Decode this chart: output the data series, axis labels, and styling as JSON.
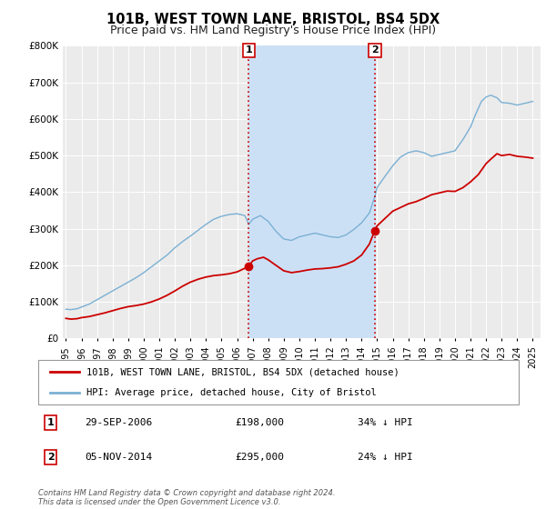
{
  "title": "101B, WEST TOWN LANE, BRISTOL, BS4 5DX",
  "subtitle": "Price paid vs. HM Land Registry's House Price Index (HPI)",
  "ylim": [
    0,
    800000
  ],
  "yticks": [
    0,
    100000,
    200000,
    300000,
    400000,
    500000,
    600000,
    700000,
    800000
  ],
  "ytick_labels": [
    "£0",
    "£100K",
    "£200K",
    "£300K",
    "£400K",
    "£500K",
    "£600K",
    "£700K",
    "£800K"
  ],
  "xlim_start": 1994.8,
  "xlim_end": 2025.5,
  "xticks": [
    1995,
    1996,
    1997,
    1998,
    1999,
    2000,
    2001,
    2002,
    2003,
    2004,
    2005,
    2006,
    2007,
    2008,
    2009,
    2010,
    2011,
    2012,
    2013,
    2014,
    2015,
    2016,
    2017,
    2018,
    2019,
    2020,
    2021,
    2022,
    2023,
    2024,
    2025
  ],
  "background_color": "#ffffff",
  "plot_bg_color": "#ebebeb",
  "shaded_color": "#cce0f5",
  "event1_x": 2006.75,
  "event1_y": 198000,
  "event1_label": "1",
  "event2_x": 2014.85,
  "event2_y": 295000,
  "event2_label": "2",
  "event_dot_color": "#cc0000",
  "event_line_color": "#cc0000",
  "red_line_color": "#cc0000",
  "blue_line_color": "#7ab0d4",
  "legend_line1": "101B, WEST TOWN LANE, BRISTOL, BS4 5DX (detached house)",
  "legend_line2": "HPI: Average price, detached house, City of Bristol",
  "annotation1_date": "29-SEP-2006",
  "annotation1_price": "£198,000",
  "annotation1_hpi": "34% ↓ HPI",
  "annotation2_date": "05-NOV-2014",
  "annotation2_price": "£295,000",
  "annotation2_hpi": "24% ↓ HPI",
  "footer": "Contains HM Land Registry data © Crown copyright and database right 2024.\nThis data is licensed under the Open Government Licence v3.0.",
  "title_fontsize": 10.5,
  "subtitle_fontsize": 9
}
